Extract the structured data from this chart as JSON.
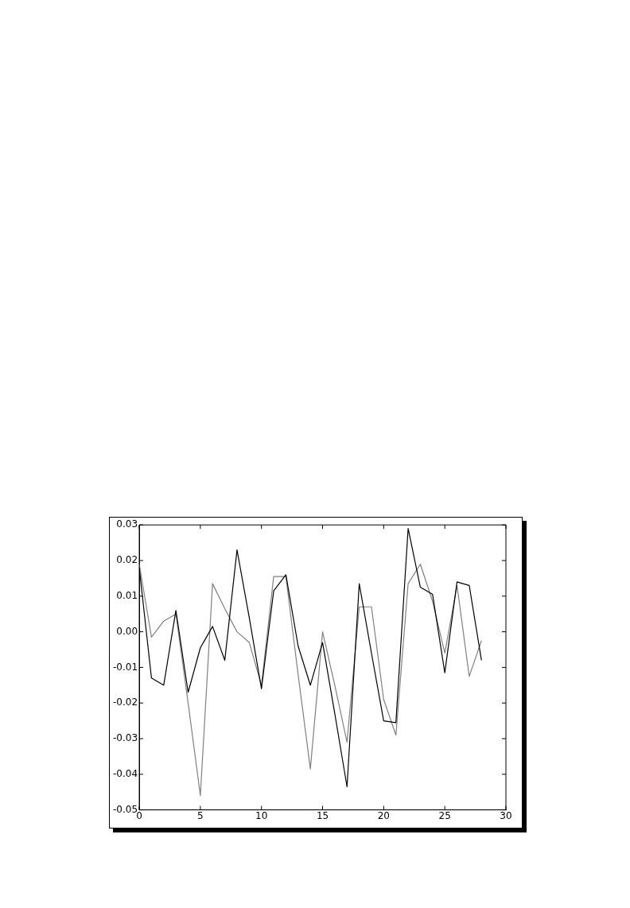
{
  "chart_data": {
    "type": "line",
    "x": [
      0,
      1,
      2,
      3,
      4,
      5,
      6,
      7,
      8,
      9,
      10,
      11,
      12,
      13,
      14,
      15,
      16,
      17,
      18,
      19,
      20,
      21,
      22,
      23,
      24,
      25,
      26,
      27,
      28
    ],
    "series": [
      {
        "color": "#000000",
        "values": [
          0.018,
          -0.013,
          -0.015,
          0.006,
          -0.017,
          -0.0045,
          0.0015,
          -0.008,
          0.023,
          0.004,
          -0.016,
          0.0115,
          0.016,
          -0.004,
          -0.015,
          -0.003,
          -0.023,
          -0.0435,
          0.0135,
          -0.006,
          -0.025,
          -0.0255,
          0.029,
          0.0125,
          0.0105,
          -0.0115,
          0.014,
          0.013,
          -0.008
        ]
      },
      {
        "color": "#808080",
        "values": [
          0.019,
          -0.0015,
          0.003,
          0.005,
          -0.02,
          -0.046,
          0.0135,
          0.0065,
          0.0,
          -0.003,
          -0.015,
          0.0155,
          0.0155,
          -0.012,
          -0.0385,
          0.0,
          -0.015,
          -0.031,
          0.007,
          0.007,
          -0.019,
          -0.029,
          0.0135,
          0.019,
          0.0085,
          -0.006,
          0.013,
          -0.0125,
          -0.0025
        ]
      }
    ],
    "xlim": [
      0,
      30
    ],
    "xticks": [
      0,
      5,
      10,
      15,
      20,
      25,
      30
    ],
    "ylim": [
      -0.05,
      0.03
    ],
    "yticks": [
      {
        "value": -0.05,
        "label": "-0.05"
      },
      {
        "value": -0.04,
        "label": "-0.04"
      },
      {
        "value": -0.03,
        "label": "-0.03"
      },
      {
        "value": -0.02,
        "label": "-0.02"
      },
      {
        "value": -0.01,
        "label": "-0.01"
      },
      {
        "value": 0,
        "label": "0.00"
      },
      {
        "value": 0.01,
        "label": "0.01"
      },
      {
        "value": 0.02,
        "label": "0.02"
      },
      {
        "value": 0.03,
        "label": "0.03"
      }
    ],
    "grid": false,
    "legend": false,
    "marker": "none",
    "line_style": "solid"
  }
}
